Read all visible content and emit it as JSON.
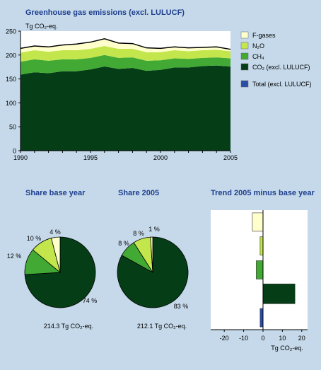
{
  "colors": {
    "background": "#c5d9ea",
    "title": "#1f3f8f",
    "f_gases": "#ffffcc",
    "n2o": "#c2e64b",
    "ch4": "#41a934",
    "co2": "#053d16",
    "total": "#2a4ea8"
  },
  "main_chart": {
    "title": "Greenhouse gas emissions (excl. LULUCF)",
    "unit_label": "Tg CO₂-eq."
  },
  "pie_base": {
    "title": "Share base year",
    "caption": "214.3 Tg CO₂-eq."
  },
  "pie_2005": {
    "title": "Share 2005",
    "caption": "212.1 Tg CO₂-eq."
  },
  "trend": {
    "title": "Trend 2005 minus base year",
    "xlabel": "Tg CO₂-eq."
  },
  "chart_data": [
    {
      "type": "area",
      "title": "Greenhouse gas emissions (excl. LULUCF)",
      "ylabel": "Tg CO₂-eq.",
      "ylim": [
        0,
        250
      ],
      "xlim": [
        1990,
        2005
      ],
      "x_ticks": [
        1990,
        1995,
        2000,
        2005
      ],
      "y_ticks": [
        0,
        50,
        100,
        150,
        200,
        250
      ],
      "grid": false,
      "legend_position": "right",
      "x": [
        1990,
        1991,
        1992,
        1993,
        1994,
        1995,
        1996,
        1997,
        1998,
        1999,
        2000,
        2001,
        2002,
        2003,
        2004,
        2005
      ],
      "series": [
        {
          "name": "CO₂ (excl. LULUCF)",
          "color": "#053d16",
          "values": [
            159,
            164,
            162,
            166,
            166,
            170,
            176,
            171,
            173,
            167,
            169,
            174,
            174,
            177,
            178,
            176
          ]
        },
        {
          "name": "CH₄",
          "color": "#41a934",
          "values": [
            27,
            27,
            26,
            25,
            25,
            24,
            24,
            23,
            22,
            21,
            20,
            19,
            18,
            17,
            17,
            17
          ]
        },
        {
          "name": "N₂O",
          "color": "#c2e64b",
          "values": [
            19,
            19,
            19,
            19,
            19,
            19,
            19,
            19,
            18,
            18,
            17,
            17,
            16,
            16,
            16,
            15
          ]
        },
        {
          "name": "F-gases",
          "color": "#ffffcc",
          "values": [
            9,
            9,
            10,
            11,
            13,
            14,
            15,
            12,
            11,
            9,
            8,
            7,
            7,
            6,
            6,
            4
          ]
        }
      ],
      "legend_extra": [
        {
          "name": "Total (excl. LULUCF)",
          "color": "#2a4ea8"
        }
      ]
    },
    {
      "type": "pie",
      "title": "Share base year",
      "caption": "214.3 Tg CO₂-eq.",
      "slices": [
        {
          "name": "CO₂ (excl. LULUCF)",
          "value": 74,
          "label": "74 %",
          "color": "#053d16"
        },
        {
          "name": "CH₄",
          "value": 12,
          "label": "12 %",
          "color": "#41a934"
        },
        {
          "name": "N₂O",
          "value": 10,
          "label": "10 %",
          "color": "#c2e64b"
        },
        {
          "name": "F-gases",
          "value": 4,
          "label": "4 %",
          "color": "#ffffcc"
        }
      ]
    },
    {
      "type": "pie",
      "title": "Share 2005",
      "caption": "212.1 Tg CO₂-eq.",
      "slices": [
        {
          "name": "CO₂ (excl. LULUCF)",
          "value": 83,
          "label": "83 %",
          "color": "#053d16"
        },
        {
          "name": "CH₄",
          "value": 8,
          "label": "8 %",
          "color": "#41a934"
        },
        {
          "name": "N₂O",
          "value": 8,
          "label": "8 %",
          "color": "#c2e64b"
        },
        {
          "name": "F-gases",
          "value": 1,
          "label": "1 %",
          "color": "#ffffcc"
        }
      ]
    },
    {
      "type": "bar",
      "orientation": "horizontal",
      "title": "Trend 2005 minus base year",
      "xlabel": "Tg CO₂-eq.",
      "xlim": [
        -27,
        23
      ],
      "x_ticks": [
        -20,
        -10,
        0,
        10,
        20
      ],
      "categories": [
        "F-gases",
        "N₂O",
        "CH₄",
        "CO₂ (excl. LULUCF)",
        "Total (excl. LULUCF)"
      ],
      "values": [
        -5.5,
        -1.5,
        -3.5,
        16.5,
        -1.5
      ],
      "colors": [
        "#ffffcc",
        "#c2e64b",
        "#41a934",
        "#053d16",
        "#2a4ea8"
      ]
    }
  ]
}
